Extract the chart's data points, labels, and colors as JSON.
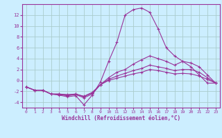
{
  "background_color": "#cceeff",
  "grid_color": "#aacccc",
  "line_color": "#993399",
  "marker": "+",
  "xlabel": "Windchill (Refroidissement éolien,°C)",
  "xlim": [
    -0.5,
    23.5
  ],
  "ylim": [
    -5,
    14
  ],
  "yticks": [
    -4,
    -2,
    0,
    2,
    4,
    6,
    8,
    10,
    12
  ],
  "xticks": [
    0,
    1,
    2,
    3,
    4,
    5,
    6,
    7,
    8,
    9,
    10,
    11,
    12,
    13,
    14,
    15,
    16,
    17,
    18,
    19,
    20,
    21,
    22,
    23
  ],
  "series": [
    [
      -1.2,
      -1.8,
      -1.8,
      -2.5,
      -2.7,
      -3.0,
      -2.8,
      -4.5,
      -2.7,
      -0.3,
      3.5,
      7.0,
      12.0,
      13.0,
      13.3,
      12.5,
      9.5,
      6.0,
      4.5,
      3.5,
      2.5,
      1.0,
      -0.5,
      -0.5
    ],
    [
      -1.2,
      -1.8,
      -1.8,
      -2.5,
      -2.6,
      -2.8,
      -2.6,
      -3.2,
      -2.5,
      -0.8,
      0.5,
      1.5,
      2.0,
      3.0,
      3.8,
      4.5,
      4.0,
      3.5,
      2.8,
      3.5,
      3.2,
      2.5,
      1.0,
      -0.5
    ],
    [
      -1.2,
      -1.8,
      -1.8,
      -2.5,
      -2.5,
      -2.7,
      -2.5,
      -3.0,
      -2.3,
      -0.8,
      0.2,
      0.8,
      1.3,
      1.8,
      2.2,
      2.8,
      2.5,
      2.2,
      1.8,
      2.0,
      2.0,
      1.5,
      0.5,
      -0.5
    ],
    [
      -1.2,
      -1.8,
      -1.8,
      -2.5,
      -2.5,
      -2.6,
      -2.5,
      -2.9,
      -2.2,
      -0.8,
      0.0,
      0.4,
      0.8,
      1.2,
      1.5,
      2.0,
      1.8,
      1.5,
      1.2,
      1.3,
      1.2,
      0.8,
      0.2,
      -0.5
    ]
  ]
}
